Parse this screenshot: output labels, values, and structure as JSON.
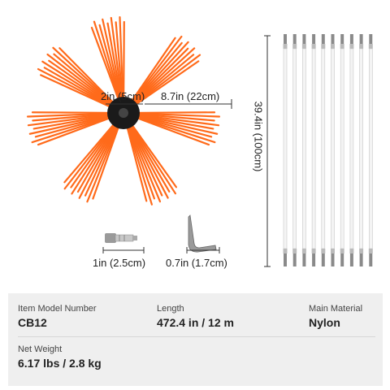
{
  "dimensions": {
    "hub_diameter": "2in (5cm)",
    "bristle_length": "8.7in (22cm)",
    "rod_length": "39.4in (100cm)",
    "adapter_length": "1in (2.5cm)",
    "wrench_length": "0.7in (1.7cm)"
  },
  "product": {
    "rod_count": 10,
    "colors": {
      "bristle": "#ff6a1a",
      "hub": "#1a1a1a",
      "rod": "#f4f4f4",
      "rod_tip": "#8a8a8a",
      "panel": "#efefef"
    },
    "icons": [
      "brush-head-icon",
      "adapter-icon",
      "hex-wrench-icon",
      "rod-icon"
    ]
  },
  "specs": {
    "model_label": "Item Model Number",
    "model_value": "CB12",
    "length_label": "Length",
    "length_value": "472.4 in / 12 m",
    "material_label": "Main Material",
    "material_value": "Nylon",
    "weight_label": "Net Weight",
    "weight_value": "6.17 lbs / 2.8 kg"
  }
}
